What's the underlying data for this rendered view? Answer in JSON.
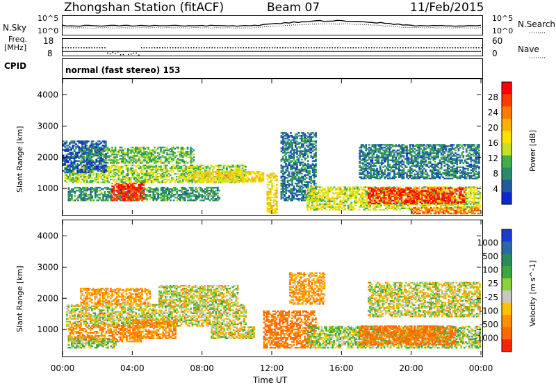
{
  "header": {
    "station": "Zhongshan Station (fitACF)",
    "beam": "Beam 07",
    "date": "11/Feb/2015"
  },
  "top_panel": {
    "left_label": "N.Sky",
    "right_label": "N.Search",
    "left_ticks": [
      "10^5",
      "10^0"
    ],
    "right_ticks": [
      "10^5",
      "10^0"
    ]
  },
  "freq_panel": {
    "left_label_1": "Freq.",
    "left_label_2": "[MHz]",
    "right_label": "Nave",
    "left_ticks": [
      "18",
      "8"
    ],
    "right_ticks": [
      "60",
      "0"
    ]
  },
  "cpid": {
    "label": "CPID",
    "text": "normal (fast stereo) 153"
  },
  "power_panel": {
    "ylabel": "Slant Range [km]",
    "colorbar_label": "Power [dB]",
    "colorbar_ticks": [
      "28",
      "24",
      "20",
      "16",
      "12",
      "8",
      "4"
    ],
    "colors": [
      "#ff0000",
      "#ff3a00",
      "#ff7a00",
      "#ffb000",
      "#ffe000",
      "#c8e01e",
      "#3fb04a",
      "#2a8a6a",
      "#1e5aa0",
      "#0a2ad0"
    ]
  },
  "velocity_panel": {
    "ylabel": "Slant Range [km]",
    "colorbar_label": "Velocity [m s^-1]",
    "colorbar_ticks": [
      "1000",
      "500",
      "100",
      "25",
      "-25",
      "-100",
      "-500",
      "-1000"
    ],
    "colors": [
      "#1a3ad0",
      "#2a6aa8",
      "#2a8a5a",
      "#3aa83a",
      "#8ad23a",
      "#c8c8c0",
      "#ffc000",
      "#ff9000",
      "#ff6a00",
      "#ff2000"
    ]
  },
  "chart_data": {
    "type": "heatmap",
    "xlabel": "Time UT",
    "x_ticks": [
      "00:00",
      "04:00",
      "08:00",
      "12:00",
      "16:00",
      "20:00",
      "00:00"
    ],
    "x_range_hours": [
      0,
      24
    ],
    "y_ticks": [
      "1000",
      "2000",
      "3000",
      "4000"
    ],
    "y_range_km": [
      180,
      4500
    ],
    "power_regions": [
      {
        "t0": 0.1,
        "t1": 10.5,
        "r0": 1180,
        "r1": 1750,
        "db": 14
      },
      {
        "t0": 0.3,
        "t1": 9.0,
        "r0": 600,
        "r1": 1050,
        "db": 10
      },
      {
        "t0": 2.8,
        "t1": 4.6,
        "r0": 600,
        "r1": 1150,
        "db": 28
      },
      {
        "t0": 1.0,
        "t1": 7.5,
        "r0": 1800,
        "r1": 2300,
        "db": 12
      },
      {
        "t0": 0.0,
        "t1": 2.5,
        "r0": 1500,
        "r1": 2500,
        "db": 6
      },
      {
        "t0": 7.5,
        "t1": 11.5,
        "r0": 1200,
        "r1": 1550,
        "db": 18
      },
      {
        "t0": 11.7,
        "t1": 12.3,
        "r0": 200,
        "r1": 1500,
        "db": 18
      },
      {
        "t0": 12.5,
        "t1": 14.5,
        "r0": 600,
        "r1": 2800,
        "db": 8
      },
      {
        "t0": 14.0,
        "t1": 23.9,
        "r0": 300,
        "r1": 1050,
        "db": 16
      },
      {
        "t0": 17.5,
        "t1": 23.0,
        "r0": 500,
        "r1": 1000,
        "db": 28
      },
      {
        "t0": 17.0,
        "t1": 23.9,
        "r0": 1300,
        "r1": 2400,
        "db": 8
      },
      {
        "t0": 20.0,
        "t1": 23.9,
        "r0": 180,
        "r1": 400,
        "db": 24
      }
    ],
    "velocity_regions": [
      {
        "t0": 0.2,
        "t1": 10.5,
        "r0": 1100,
        "r1": 1800,
        "v": 0
      },
      {
        "t0": 0.3,
        "t1": 4.5,
        "r0": 600,
        "r1": 1100,
        "v": -200
      },
      {
        "t0": 0.3,
        "t1": 3.0,
        "r0": 400,
        "r1": 700,
        "v": 80
      },
      {
        "t0": 4.0,
        "t1": 6.5,
        "r0": 700,
        "r1": 1300,
        "v": -200
      },
      {
        "t0": 1.0,
        "t1": 5.0,
        "r0": 1800,
        "r1": 2300,
        "v": -150
      },
      {
        "t0": 5.5,
        "t1": 10.0,
        "r0": 1800,
        "r1": 2400,
        "v": 0
      },
      {
        "t0": 11.5,
        "t1": 14.5,
        "r0": 400,
        "r1": 1600,
        "v": -300
      },
      {
        "t0": 13.0,
        "t1": 15.0,
        "r0": 1800,
        "r1": 2800,
        "v": -150
      },
      {
        "t0": 14.0,
        "t1": 23.9,
        "r0": 400,
        "r1": 1100,
        "v": 60
      },
      {
        "t0": 17.0,
        "t1": 22.5,
        "r0": 500,
        "r1": 1100,
        "v": -300
      },
      {
        "t0": 17.5,
        "t1": 23.9,
        "r0": 1400,
        "r1": 2500,
        "v": 0
      },
      {
        "t0": 8.5,
        "t1": 11.0,
        "r0": 700,
        "r1": 1100,
        "v": 0
      }
    ]
  }
}
